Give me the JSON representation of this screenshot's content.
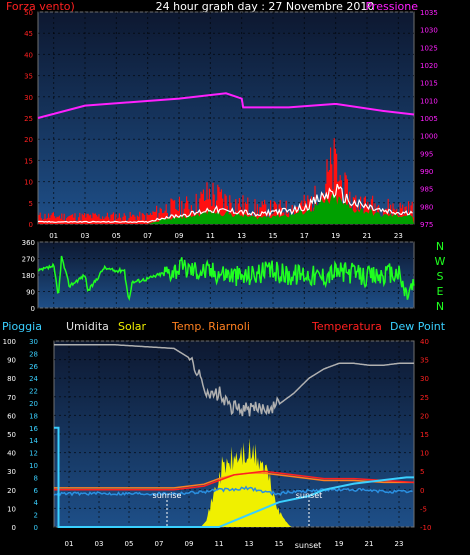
{
  "header": {
    "left_label": "Forza vento)",
    "center_title": "24 hour graph day : 27 Novembre 2010",
    "right_label": "Pressione"
  },
  "bottom_legend": {
    "pioggia": "Pioggia",
    "umidita": "Umidita",
    "solar": "Solar",
    "temp_riarnoli": "Temp. Riarnoli",
    "temperatura": "Temperatura",
    "dew_point": "Dew Point"
  },
  "compass": [
    "N",
    "W",
    "S",
    "E",
    "N"
  ],
  "annotations": {
    "sunrise": "sunrise",
    "sunset": "sunset",
    "sunset_axis": "sunset"
  },
  "colors": {
    "wind": "#ff1010",
    "gust": "#ffffff",
    "wind_avg": "#00a000",
    "pressure": "#ff20ff",
    "direction": "#20ff20",
    "humidity": "#b0b0b0",
    "solar": "#f0f000",
    "temp_riarnoli": "#ff8020",
    "temperatura": "#ff2020",
    "dew_point": "#3ad0ff",
    "panel_top": "#0d1830",
    "panel_bottom": "#1e4f88"
  },
  "chart_data": [
    {
      "type": "area",
      "name": "wind-pressure",
      "x_ticks": [
        "01",
        "03",
        "05",
        "07",
        "09",
        "11",
        "13",
        "15",
        "17",
        "19",
        "21",
        "23"
      ],
      "left_axis": {
        "ticks": [
          0,
          5,
          10,
          15,
          20,
          25,
          30,
          35,
          40,
          45,
          50
        ],
        "range": [
          0,
          50
        ]
      },
      "right_axis": {
        "ticks": [
          975,
          980,
          985,
          990,
          995,
          1000,
          1005,
          1010,
          1015,
          1020,
          1025,
          1030,
          1035
        ],
        "range": [
          975,
          1035
        ]
      },
      "pressure": {
        "x": [
          0,
          3,
          6,
          9,
          12,
          13,
          13.1,
          16,
          19,
          22,
          24
        ],
        "y": [
          1005,
          1008.5,
          1009.5,
          1010.5,
          1012,
          1010.5,
          1008,
          1008,
          1009,
          1007,
          1006
        ]
      },
      "wind_envelope": {
        "x": [
          0,
          7,
          8,
          9,
          10,
          11,
          12,
          13,
          14,
          15,
          16,
          17,
          18,
          18.5,
          19,
          19.5,
          20,
          21,
          22,
          23,
          24
        ],
        "y": [
          2,
          2,
          4,
          4.5,
          5,
          8,
          6,
          5,
          4,
          4,
          4,
          5,
          7,
          12,
          15,
          9,
          6,
          5,
          4.5,
          4,
          4
        ]
      },
      "gust": {
        "x": [
          0,
          7,
          8,
          9,
          10,
          11,
          12,
          13,
          14,
          15,
          16,
          17,
          18,
          19,
          20,
          21,
          22,
          23,
          24
        ],
        "y": [
          0.5,
          0.5,
          1.5,
          2,
          2.5,
          3.5,
          3,
          3,
          2,
          3,
          3,
          4,
          6,
          8,
          5,
          4,
          3,
          2.5,
          2.5
        ]
      },
      "avg": {
        "x": [
          0,
          7,
          8,
          9,
          10,
          11,
          12,
          13,
          14,
          15,
          16,
          17,
          18,
          19,
          20,
          21,
          22,
          23,
          24
        ],
        "y": [
          0,
          0,
          1,
          1.5,
          2,
          3,
          2.5,
          2,
          1.5,
          2,
          2,
          3,
          4.5,
          6,
          3.5,
          3,
          2,
          2,
          2
        ]
      }
    },
    {
      "type": "line",
      "name": "wind-direction",
      "left_axis": {
        "ticks": [
          0,
          90,
          180,
          270,
          360
        ],
        "range": [
          0,
          360
        ]
      },
      "x": [
        0,
        1,
        1.3,
        1.5,
        2,
        3,
        3.2,
        4,
        4.2,
        5,
        5.5,
        5.8,
        6,
        7,
        8,
        9,
        10,
        11,
        12,
        13,
        14,
        15,
        16,
        17,
        18,
        19,
        20,
        21,
        22,
        23,
        23.5,
        24
      ],
      "y": [
        200,
        230,
        60,
        280,
        120,
        180,
        90,
        190,
        220,
        200,
        210,
        40,
        140,
        160,
        190,
        220,
        210,
        200,
        190,
        170,
        190,
        200,
        180,
        190,
        170,
        200,
        190,
        170,
        180,
        190,
        70,
        130
      ]
    },
    {
      "type": "line",
      "name": "weather",
      "left_axis": {
        "ticks": [
          0,
          10,
          20,
          30,
          40,
          50,
          60,
          70,
          80,
          90,
          100
        ],
        "range": [
          0,
          100
        ]
      },
      "mm_axis": {
        "ticks": [
          0,
          2,
          4,
          6,
          8,
          10,
          12,
          14,
          16,
          18,
          20,
          22,
          24,
          26,
          28,
          30
        ],
        "range": [
          0,
          30
        ]
      },
      "right_axis": {
        "ticks": [
          -10,
          -5,
          0,
          5,
          10,
          15,
          20,
          25,
          30,
          35,
          40
        ],
        "range": [
          -10,
          40
        ]
      },
      "humidity": {
        "x": [
          0,
          4,
          6,
          8,
          9,
          9.5,
          10,
          10.5,
          11,
          11.5,
          12,
          13,
          14,
          15,
          16,
          17,
          18,
          19,
          20,
          21,
          22,
          23,
          24
        ],
        "y": [
          98,
          98,
          97,
          96,
          91,
          84,
          76,
          70,
          72,
          66,
          64,
          63,
          64,
          66,
          72,
          80,
          85,
          88,
          88,
          87,
          87,
          88,
          88
        ]
      },
      "temperatura": {
        "x": [
          0,
          6,
          8,
          10,
          11,
          12,
          13,
          14,
          16,
          18,
          20,
          22,
          24
        ],
        "y": [
          0,
          0,
          0,
          1,
          2.5,
          4,
          4.5,
          5,
          4,
          3,
          3,
          2.5,
          2
        ]
      },
      "temp_riarnoli": {
        "x": [
          0,
          6,
          8,
          10,
          11,
          12,
          13,
          14,
          16,
          18,
          20,
          22,
          24
        ],
        "y": [
          0.5,
          0.5,
          0.5,
          1.5,
          3,
          4,
          4.5,
          4.5,
          3.5,
          2.5,
          2.5,
          2,
          2
        ]
      },
      "dew_point": {
        "x": [
          0,
          4,
          6,
          8,
          10,
          11,
          12,
          13,
          14,
          15,
          16,
          18,
          20,
          22,
          24
        ],
        "y": [
          -1,
          -1,
          -1,
          -1,
          -0.5,
          0,
          0,
          0.5,
          -0.5,
          -1,
          -0.5,
          0,
          0,
          -0.5,
          -0.5
        ]
      },
      "rain_mm": {
        "x": [
          0,
          0.3,
          0.3,
          11,
          12,
          12.5,
          13,
          14,
          15,
          17,
          18,
          20,
          23.5,
          24
        ],
        "y": [
          16,
          16,
          0,
          0,
          1,
          1.5,
          2,
          3,
          4,
          5,
          6,
          7,
          8,
          8
        ]
      },
      "solar": {
        "x": [
          0,
          9.8,
          10.2,
          10.8,
          11.2,
          11.8,
          12.5,
          13,
          13.6,
          14.2,
          15,
          15.8,
          24
        ],
        "y": [
          0,
          0,
          5,
          22,
          32,
          36,
          40,
          40,
          38,
          30,
          8,
          0,
          0
        ]
      }
    }
  ]
}
